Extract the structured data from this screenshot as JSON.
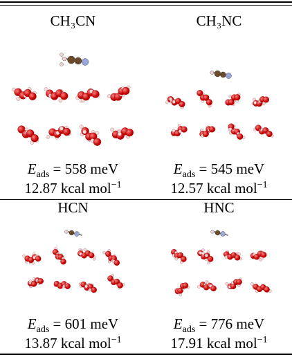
{
  "panels": [
    {
      "molecule": "CH₃CN",
      "energy": {
        "symbol": "E",
        "subscript": "ads",
        "relation": "=",
        "value": 558,
        "unit": "meV"
      },
      "kcal": {
        "value": 12.87,
        "unit": "kcal mol",
        "power": "−1"
      }
    },
    {
      "molecule": "CH₃NC",
      "energy": {
        "symbol": "E",
        "subscript": "ads",
        "relation": "=",
        "value": 545,
        "unit": "meV"
      },
      "kcal": {
        "value": 12.57,
        "unit": "kcal mol",
        "power": "−1"
      }
    },
    {
      "molecule": "HCN",
      "energy": {
        "symbol": "E",
        "subscript": "ads",
        "relation": "=",
        "value": 601,
        "unit": "meV"
      },
      "kcal": {
        "value": 13.87,
        "unit": "kcal mol",
        "power": "−1"
      }
    },
    {
      "molecule": "HNC",
      "energy": {
        "symbol": "E",
        "subscript": "ads",
        "relation": "=",
        "value": 776,
        "unit": "meV"
      },
      "kcal": {
        "value": 17.91,
        "unit": "kcal mol",
        "power": "−1"
      }
    }
  ]
}
